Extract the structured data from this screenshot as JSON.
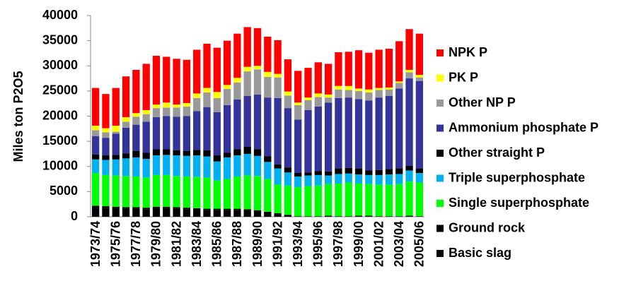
{
  "chart_data": {
    "type": "bar",
    "stacked": true,
    "ylabel": "Miles ton P2O5",
    "categories": [
      "1973/74",
      null,
      "1975/76",
      null,
      "1977/78",
      null,
      "1979/80",
      null,
      "1981/82",
      null,
      "1983/84",
      null,
      "1985/86",
      null,
      "1987/88",
      null,
      "1989/90",
      null,
      "1991/92",
      null,
      "1993/94",
      null,
      "1995/96",
      null,
      "1997/98",
      null,
      "1999/00",
      null,
      "2001/02",
      null,
      "2003/04",
      null,
      "2005/06"
    ],
    "ylim": [
      0,
      40000
    ],
    "yticks": [
      0,
      5000,
      10000,
      15000,
      20000,
      25000,
      30000,
      35000,
      40000
    ],
    "legend": "right",
    "series": [
      {
        "name": "Basic slag",
        "color": "#000000",
        "values": [
          1900,
          1800,
          1700,
          1600,
          1600,
          1500,
          1700,
          1700,
          1600,
          1500,
          1400,
          1300,
          1300,
          1300,
          1300,
          1200,
          1000,
          700,
          500,
          300,
          0,
          0,
          0,
          0,
          0,
          0,
          0,
          0,
          0,
          0,
          0,
          0,
          0
        ]
      },
      {
        "name": "Ground rock",
        "color": "#000000",
        "values": [
          300,
          300,
          300,
          300,
          300,
          300,
          300,
          300,
          300,
          300,
          300,
          300,
          300,
          300,
          300,
          300,
          300,
          300,
          200,
          100,
          100,
          100,
          100,
          200,
          100,
          100,
          200,
          200,
          100,
          100,
          100,
          200,
          100
        ]
      },
      {
        "name": "Single superphosphate",
        "color": "#00ff00",
        "values": [
          6500,
          6200,
          6200,
          6200,
          6100,
          6000,
          6300,
          6300,
          6200,
          6200,
          6200,
          6200,
          5600,
          5900,
          6400,
          6700,
          6800,
          6500,
          5700,
          5800,
          5800,
          6000,
          6100,
          6300,
          6500,
          6700,
          6400,
          6300,
          6300,
          6300,
          6400,
          6800,
          6700
        ]
      },
      {
        "name": "Triple superphosphate",
        "color": "#00b0f0",
        "values": [
          2700,
          3000,
          3200,
          3500,
          3800,
          3700,
          3900,
          4000,
          4100,
          4100,
          4300,
          4200,
          3800,
          4300,
          4200,
          4300,
          4000,
          3400,
          3200,
          2600,
          2100,
          2100,
          2100,
          1700,
          1900,
          1800,
          1800,
          1800,
          1900,
          2000,
          2000,
          2200,
          1900
        ]
      },
      {
        "name": "Other straight P",
        "color": "#000000",
        "values": [
          1000,
          900,
          900,
          1000,
          1300,
          1200,
          1200,
          1100,
          1000,
          1000,
          1100,
          1200,
          1200,
          900,
          1200,
          1400,
          1300,
          1100,
          800,
          1000,
          700,
          600,
          800,
          800,
          1100,
          1100,
          1200,
          900,
          1000,
          1100,
          1100,
          900,
          900
        ]
      },
      {
        "name": "Ammonium phosphate P",
        "color": "#333399",
        "values": [
          3600,
          3500,
          4200,
          5100,
          5200,
          6200,
          6400,
          6600,
          6700,
          6900,
          7700,
          8600,
          8600,
          9500,
          9900,
          10100,
          10900,
          11700,
          13200,
          11800,
          10600,
          12400,
          12800,
          13700,
          14000,
          14000,
          13800,
          13900,
          14400,
          14500,
          15900,
          17400,
          17400
        ]
      },
      {
        "name": "Other NP P",
        "color": "#999999",
        "values": [
          1200,
          1100,
          400,
          1200,
          1600,
          1500,
          1800,
          1700,
          1800,
          1900,
          2600,
          2900,
          2800,
          3200,
          3400,
          4900,
          5000,
          4100,
          4100,
          2500,
          2900,
          2000,
          1900,
          1000,
          1700,
          1500,
          1600,
          1600,
          1500,
          1300,
          1100,
          1200,
          700
        ]
      },
      {
        "name": "PK P",
        "color": "#ffff00",
        "values": [
          900,
          800,
          1200,
          900,
          700,
          800,
          700,
          1000,
          600,
          700,
          900,
          900,
          1200,
          800,
          900,
          900,
          700,
          1000,
          700,
          800,
          500,
          500,
          700,
          600,
          700,
          800,
          500,
          600,
          400,
          400,
          300,
          500,
          500
        ]
      },
      {
        "name": "NPK P",
        "color": "#ff0000",
        "values": [
          7500,
          6800,
          7500,
          8100,
          8600,
          9200,
          9700,
          9100,
          9100,
          8600,
          8700,
          8800,
          8800,
          8800,
          8800,
          7900,
          7500,
          7000,
          6700,
          6400,
          6300,
          5900,
          6200,
          6100,
          6700,
          6800,
          7600,
          7300,
          7600,
          7700,
          8000,
          8100,
          8200
        ]
      }
    ]
  }
}
